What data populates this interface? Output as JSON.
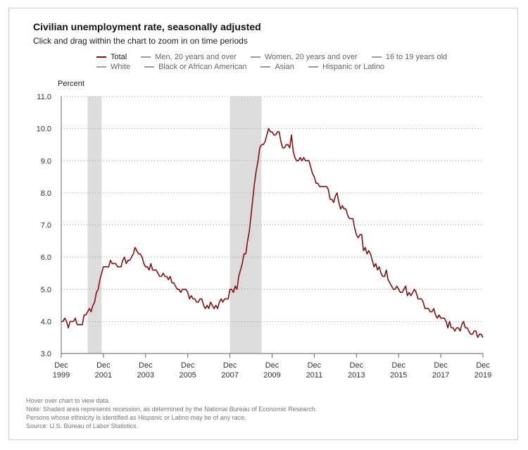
{
  "title": "Civilian unemployment rate, seasonally adjusted",
  "subtitle": "Click and drag within the chart to zoom in on time periods",
  "legend": {
    "row1": [
      "Total",
      "Men, 20 years and over",
      "Women, 20 years and over",
      "16 to 19 years old"
    ],
    "row2": [
      "White",
      "Black or African American",
      "Asian",
      "Hispanic or Latino"
    ]
  },
  "footnotes": [
    "Hover over chart to view data.",
    "Note: Shaded area represents recession, as determined by the National Bureau of Economic Research.",
    "Persons whose ethnicity is identified as Hispanic or Latino may be of any race.",
    "Source: U.S. Bureau of Labor Statistics."
  ],
  "colors": {
    "total": "#8b0d0d",
    "recession": "#dcdcdc",
    "legend_other": "#9a9a9a"
  },
  "chart_data": {
    "type": "line",
    "ylabel": "Percent",
    "ylim": [
      3.0,
      11.0
    ],
    "yticks": [
      "3.0",
      "4.0",
      "5.0",
      "6.0",
      "7.0",
      "8.0",
      "9.0",
      "10.0",
      "11.0"
    ],
    "xticks": [
      {
        "month": "Dec",
        "year": "1999"
      },
      {
        "month": "Dec",
        "year": "2001"
      },
      {
        "month": "Dec",
        "year": "2003"
      },
      {
        "month": "Dec",
        "year": "2005"
      },
      {
        "month": "Dec",
        "year": "2007"
      },
      {
        "month": "Dec",
        "year": "2009"
      },
      {
        "month": "Dec",
        "year": "2011"
      },
      {
        "month": "Dec",
        "year": "2013"
      },
      {
        "month": "Dec",
        "year": "2015"
      },
      {
        "month": "Dec",
        "year": "2017"
      },
      {
        "month": "Dec",
        "year": "2019"
      }
    ],
    "xrange": [
      "1999-12",
      "2019-12"
    ],
    "grid": "horizontal-dotted",
    "legend_position": "top",
    "recessions": [
      {
        "start": "2001-03",
        "end": "2001-11"
      },
      {
        "start": "2007-12",
        "end": "2009-06"
      }
    ],
    "series": [
      {
        "name": "Total",
        "x": [
          "1999-12",
          "2000-01",
          "2000-02",
          "2000-03",
          "2000-04",
          "2000-05",
          "2000-06",
          "2000-07",
          "2000-08",
          "2000-09",
          "2000-10",
          "2000-11",
          "2000-12",
          "2001-01",
          "2001-02",
          "2001-03",
          "2001-04",
          "2001-05",
          "2001-06",
          "2001-07",
          "2001-08",
          "2001-09",
          "2001-10",
          "2001-11",
          "2001-12",
          "2002-01",
          "2002-02",
          "2002-03",
          "2002-04",
          "2002-05",
          "2002-06",
          "2002-07",
          "2002-08",
          "2002-09",
          "2002-10",
          "2002-11",
          "2002-12",
          "2003-01",
          "2003-02",
          "2003-03",
          "2003-04",
          "2003-05",
          "2003-06",
          "2003-07",
          "2003-08",
          "2003-09",
          "2003-10",
          "2003-11",
          "2003-12",
          "2004-01",
          "2004-02",
          "2004-03",
          "2004-04",
          "2004-05",
          "2004-06",
          "2004-07",
          "2004-08",
          "2004-09",
          "2004-10",
          "2004-11",
          "2004-12",
          "2005-01",
          "2005-02",
          "2005-03",
          "2005-04",
          "2005-05",
          "2005-06",
          "2005-07",
          "2005-08",
          "2005-09",
          "2005-10",
          "2005-11",
          "2005-12",
          "2006-01",
          "2006-02",
          "2006-03",
          "2006-04",
          "2006-05",
          "2006-06",
          "2006-07",
          "2006-08",
          "2006-09",
          "2006-10",
          "2006-11",
          "2006-12",
          "2007-01",
          "2007-02",
          "2007-03",
          "2007-04",
          "2007-05",
          "2007-06",
          "2007-07",
          "2007-08",
          "2007-09",
          "2007-10",
          "2007-11",
          "2007-12",
          "2008-01",
          "2008-02",
          "2008-03",
          "2008-04",
          "2008-05",
          "2008-06",
          "2008-07",
          "2008-08",
          "2008-09",
          "2008-10",
          "2008-11",
          "2008-12",
          "2009-01",
          "2009-02",
          "2009-03",
          "2009-04",
          "2009-05",
          "2009-06",
          "2009-07",
          "2009-08",
          "2009-09",
          "2009-10",
          "2009-11",
          "2009-12",
          "2010-01",
          "2010-02",
          "2010-03",
          "2010-04",
          "2010-05",
          "2010-06",
          "2010-07",
          "2010-08",
          "2010-09",
          "2010-10",
          "2010-11",
          "2010-12",
          "2011-01",
          "2011-02",
          "2011-03",
          "2011-04",
          "2011-05",
          "2011-06",
          "2011-07",
          "2011-08",
          "2011-09",
          "2011-10",
          "2011-11",
          "2011-12",
          "2012-01",
          "2012-02",
          "2012-03",
          "2012-04",
          "2012-05",
          "2012-06",
          "2012-07",
          "2012-08",
          "2012-09",
          "2012-10",
          "2012-11",
          "2012-12",
          "2013-01",
          "2013-02",
          "2013-03",
          "2013-04",
          "2013-05",
          "2013-06",
          "2013-07",
          "2013-08",
          "2013-09",
          "2013-10",
          "2013-11",
          "2013-12",
          "2014-01",
          "2014-02",
          "2014-03",
          "2014-04",
          "2014-05",
          "2014-06",
          "2014-07",
          "2014-08",
          "2014-09",
          "2014-10",
          "2014-11",
          "2014-12",
          "2015-01",
          "2015-02",
          "2015-03",
          "2015-04",
          "2015-05",
          "2015-06",
          "2015-07",
          "2015-08",
          "2015-09",
          "2015-10",
          "2015-11",
          "2015-12",
          "2016-01",
          "2016-02",
          "2016-03",
          "2016-04",
          "2016-05",
          "2016-06",
          "2016-07",
          "2016-08",
          "2016-09",
          "2016-10",
          "2016-11",
          "2016-12",
          "2017-01",
          "2017-02",
          "2017-03",
          "2017-04",
          "2017-05",
          "2017-06",
          "2017-07",
          "2017-08",
          "2017-09",
          "2017-10",
          "2017-11",
          "2017-12",
          "2018-01",
          "2018-02",
          "2018-03",
          "2018-04",
          "2018-05",
          "2018-06",
          "2018-07",
          "2018-08",
          "2018-09",
          "2018-10",
          "2018-11",
          "2018-12",
          "2019-01",
          "2019-02",
          "2019-03",
          "2019-04",
          "2019-05",
          "2019-06",
          "2019-07",
          "2019-08",
          "2019-09",
          "2019-10",
          "2019-11",
          "2019-12"
        ],
        "values": [
          4.0,
          4.0,
          4.1,
          4.0,
          3.8,
          4.0,
          4.0,
          4.0,
          4.1,
          3.9,
          3.9,
          3.9,
          3.9,
          4.2,
          4.2,
          4.3,
          4.4,
          4.3,
          4.5,
          4.6,
          4.9,
          5.0,
          5.3,
          5.5,
          5.7,
          5.7,
          5.7,
          5.7,
          5.9,
          5.8,
          5.8,
          5.8,
          5.7,
          5.7,
          5.7,
          5.9,
          6.0,
          5.8,
          5.9,
          5.9,
          6.0,
          6.1,
          6.3,
          6.2,
          6.1,
          6.1,
          6.0,
          5.8,
          5.7,
          5.7,
          5.6,
          5.8,
          5.6,
          5.6,
          5.6,
          5.5,
          5.4,
          5.4,
          5.5,
          5.4,
          5.4,
          5.3,
          5.4,
          5.2,
          5.2,
          5.1,
          5.0,
          5.0,
          4.9,
          5.0,
          5.0,
          5.0,
          4.9,
          4.7,
          4.8,
          4.7,
          4.7,
          4.6,
          4.6,
          4.7,
          4.7,
          4.5,
          4.4,
          4.5,
          4.4,
          4.6,
          4.5,
          4.4,
          4.5,
          4.4,
          4.6,
          4.7,
          4.6,
          4.7,
          4.7,
          4.7,
          5.0,
          5.0,
          4.9,
          5.1,
          5.0,
          5.4,
          5.6,
          5.8,
          6.1,
          6.1,
          6.5,
          6.8,
          7.3,
          7.8,
          8.3,
          8.7,
          9.0,
          9.4,
          9.5,
          9.5,
          9.6,
          9.8,
          10.0,
          9.9,
          9.9,
          9.8,
          9.8,
          9.9,
          9.9,
          9.6,
          9.4,
          9.4,
          9.5,
          9.5,
          9.4,
          9.8,
          9.3,
          9.1,
          9.0,
          9.0,
          9.1,
          9.0,
          9.1,
          9.0,
          9.0,
          9.0,
          8.8,
          8.6,
          8.5,
          8.3,
          8.3,
          8.2,
          8.2,
          8.2,
          8.2,
          8.2,
          8.1,
          7.8,
          7.8,
          7.7,
          7.9,
          8.0,
          7.7,
          7.5,
          7.6,
          7.5,
          7.5,
          7.3,
          7.2,
          7.2,
          7.2,
          6.9,
          6.7,
          6.6,
          6.7,
          6.7,
          6.2,
          6.3,
          6.1,
          6.2,
          6.1,
          5.9,
          5.7,
          5.8,
          5.6,
          5.7,
          5.5,
          5.4,
          5.4,
          5.6,
          5.3,
          5.2,
          5.1,
          5.0,
          5.0,
          5.1,
          5.0,
          4.9,
          4.9,
          5.0,
          5.1,
          4.8,
          4.9,
          4.8,
          4.9,
          5.0,
          4.9,
          4.7,
          4.7,
          4.7,
          4.6,
          4.4,
          4.4,
          4.4,
          4.3,
          4.3,
          4.4,
          4.2,
          4.1,
          4.2,
          4.1,
          4.1,
          4.1,
          4.0,
          3.8,
          4.0,
          3.8,
          3.8,
          3.7,
          3.8,
          3.8,
          3.7,
          3.9,
          4.0,
          3.8,
          3.8,
          3.7,
          3.6,
          3.6,
          3.7,
          3.7,
          3.5,
          3.6,
          3.6,
          3.5
        ]
      }
    ]
  }
}
